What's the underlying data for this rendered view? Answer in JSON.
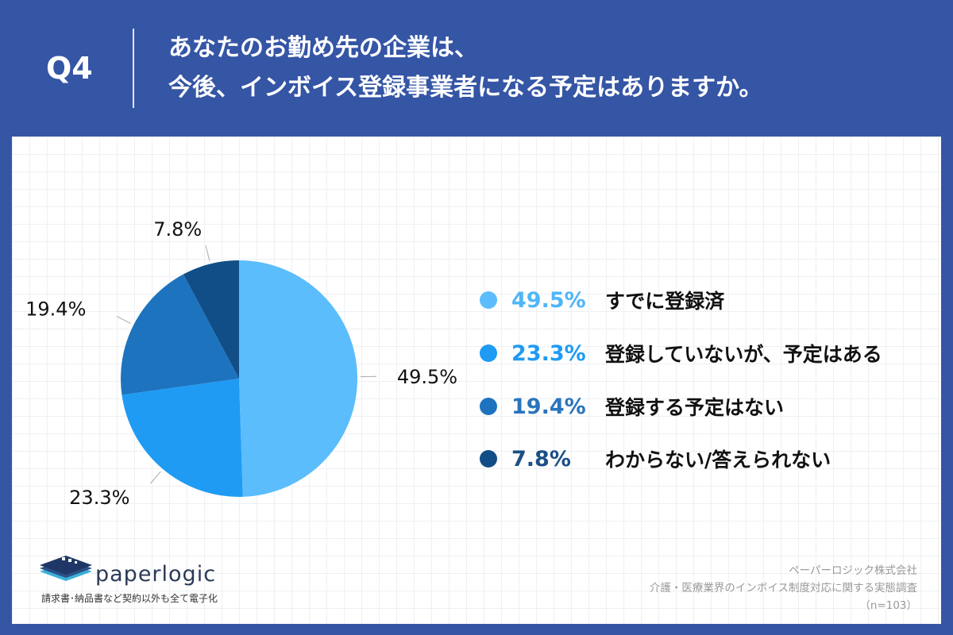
{
  "header": {
    "question_label": "Q4",
    "title_line1": "あなたのお勤め先の企業は、",
    "title_line2": "今後、インボイス登録事業者になる予定はありますか。"
  },
  "chart_data": {
    "type": "pie",
    "categories": [
      "すでに登録済",
      "登録していないが、予定はある",
      "登録する予定はない",
      "わからない/答えられない"
    ],
    "values": [
      49.5,
      23.3,
      19.4,
      7.8
    ],
    "value_labels": [
      "49.5%",
      "23.3%",
      "19.4%",
      "7.8%"
    ],
    "colors": [
      "#5bbdfc",
      "#1f9bf4",
      "#1d73be",
      "#114e87"
    ],
    "legend_pct_colors": [
      "#4fb6f8",
      "#1f9bf4",
      "#2a74bd",
      "#1b4f86"
    ],
    "start_angle_deg": 0,
    "direction": "clockwise",
    "legend_placement": "right"
  },
  "logo": {
    "name": "paperlogic",
    "tagline": "請求書･納品書など契約以外も全て電子化"
  },
  "source": {
    "company": "ペーパーロジック株式会社",
    "survey": "介護・医療業界のインボイス制度対応に関する実態調査",
    "sample": "（n=103）"
  }
}
